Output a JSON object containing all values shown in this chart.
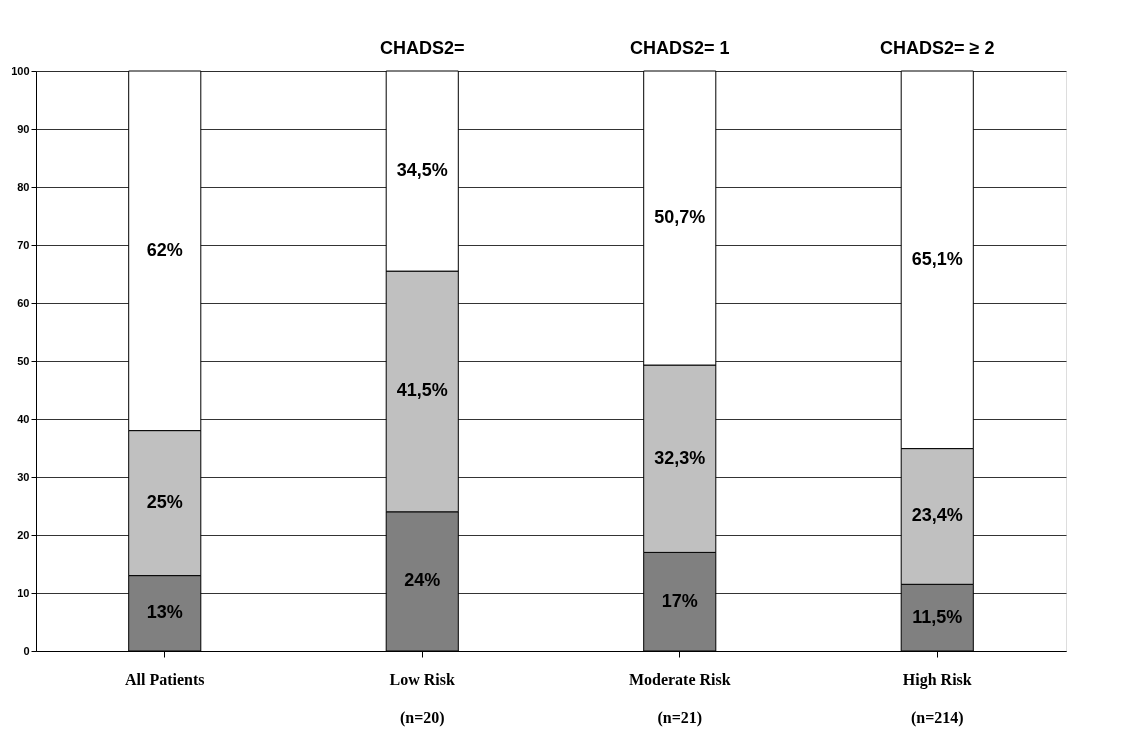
{
  "chart_data": {
    "type": "bar",
    "stacked": true,
    "categories": [
      "All Patients",
      "Low Risk\n(n=20)",
      "Moderate Risk\n(n=21)",
      "High Risk\n(n=214)"
    ],
    "series": [
      {
        "color": "#808080",
        "values": [
          13,
          24,
          17,
          11.5
        ],
        "value_labels": [
          "13%",
          "24%",
          "17%",
          "11,5%"
        ]
      },
      {
        "color": "#c0c0c0",
        "values": [
          25,
          41.5,
          32.3,
          23.4
        ],
        "value_labels": [
          "25%",
          "41,5%",
          "32,3%",
          "23,4%"
        ]
      },
      {
        "color": "#ffffff",
        "values": [
          62,
          34.5,
          50.7,
          65.1
        ],
        "value_labels": [
          "62%",
          "34,5%",
          "50,7%",
          "65,1%"
        ]
      }
    ],
    "ylim": [
      0,
      100
    ],
    "yticks": [
      0,
      10,
      20,
      30,
      40,
      50,
      60,
      70,
      80,
      90,
      100
    ],
    "grid": "y",
    "annotations": [
      "CHADS2=",
      "CHADS2= 1",
      "CHADS2= ≥ 2"
    ]
  }
}
